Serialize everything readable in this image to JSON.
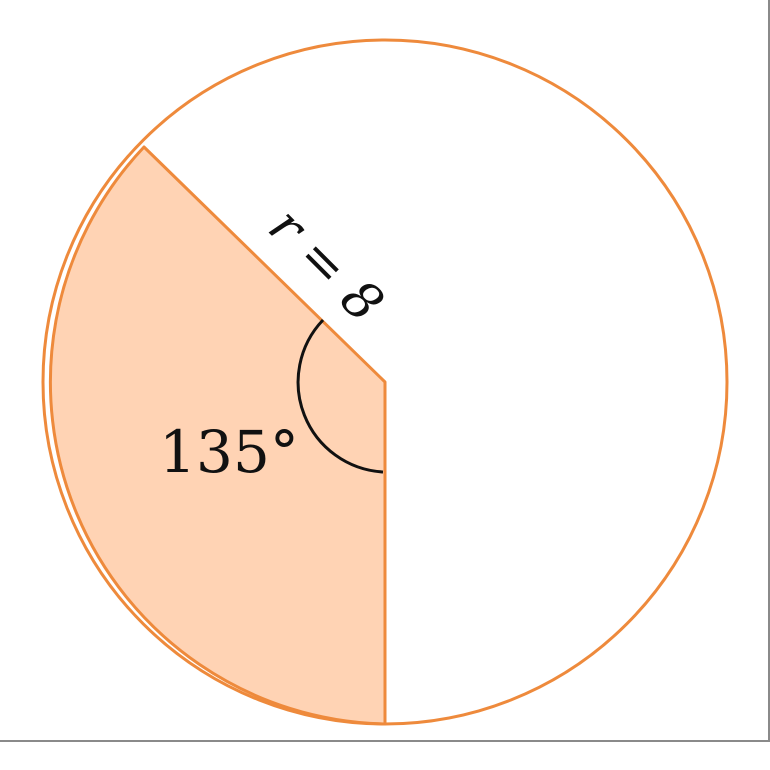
{
  "figure": {
    "radius_label": "r = 8",
    "angle_label": "135°",
    "radius_value": 8,
    "sector_angle_deg": 135,
    "colors": {
      "circle_stroke": "#ee8a3c",
      "sector_fill": "#ffd3b4",
      "sector_stroke": "#ee8a3c",
      "arc_stroke": "#111111",
      "text": "#111111"
    }
  }
}
